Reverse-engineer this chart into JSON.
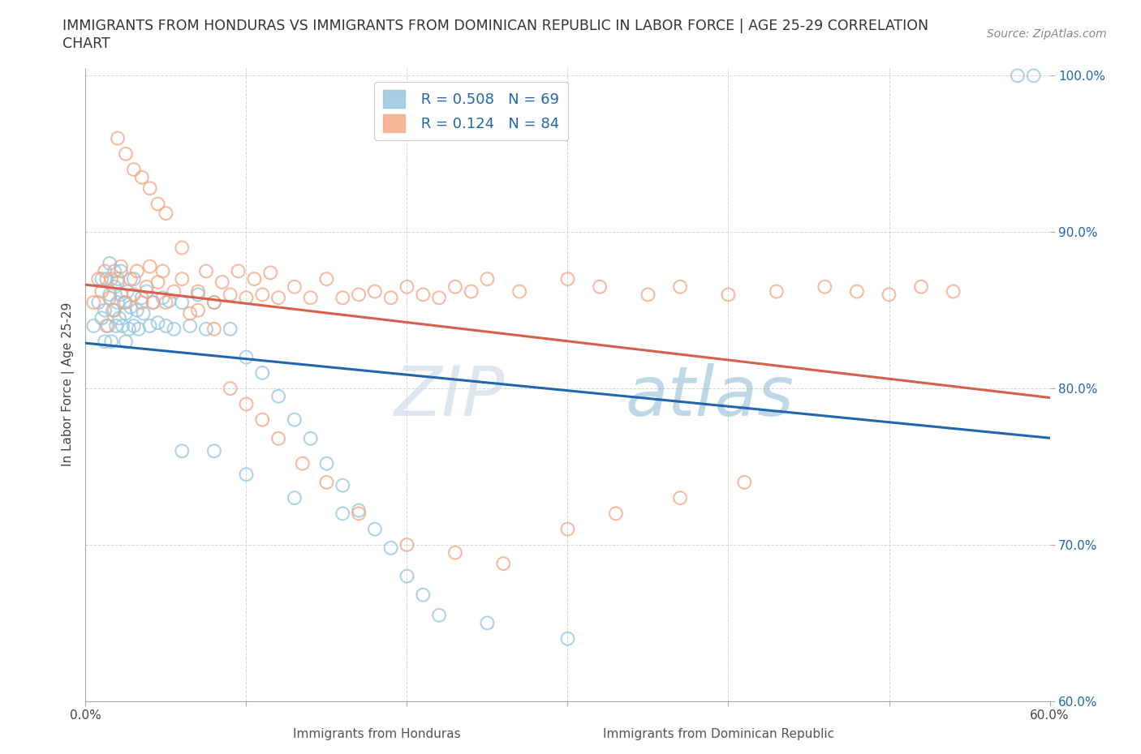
{
  "title_line1": "IMMIGRANTS FROM HONDURAS VS IMMIGRANTS FROM DOMINICAN REPUBLIC IN LABOR FORCE | AGE 25-29 CORRELATION",
  "title_line2": "CHART",
  "source_text": "Source: ZipAtlas.com",
  "xlabel_blue": "Immigrants from Honduras",
  "xlabel_pink": "Immigrants from Dominican Republic",
  "ylabel": "In Labor Force | Age 25-29",
  "xlim": [
    0.0,
    0.6
  ],
  "ylim": [
    0.6,
    1.005
  ],
  "x_ticks": [
    0.0,
    0.1,
    0.2,
    0.3,
    0.4,
    0.5,
    0.6
  ],
  "x_tick_labels": [
    "0.0%",
    "",
    "",
    "",
    "",
    "",
    "60.0%"
  ],
  "y_ticks": [
    0.6,
    0.7,
    0.8,
    0.9,
    1.0
  ],
  "y_tick_labels": [
    "60.0%",
    "70.0%",
    "80.0%",
    "90.0%",
    "100.0%"
  ],
  "R_blue": 0.508,
  "N_blue": 69,
  "R_pink": 0.124,
  "N_pink": 84,
  "blue_color": "#92c5de",
  "pink_color": "#f4a582",
  "trend_blue_color": "#2166ac",
  "trend_pink_color": "#d6604d",
  "legend_text_color": "#2166ac",
  "watermark_zip": "ZIP",
  "watermark_atlas": "atlas",
  "blue_scatter_x": [
    0.005,
    0.008,
    0.01,
    0.01,
    0.012,
    0.012,
    0.013,
    0.014,
    0.015,
    0.015,
    0.016,
    0.017,
    0.018,
    0.018,
    0.019,
    0.02,
    0.02,
    0.021,
    0.022,
    0.022,
    0.023,
    0.024,
    0.025,
    0.025,
    0.026,
    0.027,
    0.028,
    0.03,
    0.03,
    0.032,
    0.033,
    0.035,
    0.036,
    0.038,
    0.04,
    0.042,
    0.045,
    0.048,
    0.05,
    0.052,
    0.055,
    0.06,
    0.065,
    0.07,
    0.075,
    0.08,
    0.09,
    0.1,
    0.11,
    0.12,
    0.13,
    0.14,
    0.15,
    0.16,
    0.17,
    0.18,
    0.19,
    0.2,
    0.21,
    0.22,
    0.06,
    0.08,
    0.1,
    0.13,
    0.16,
    0.25,
    0.3,
    0.58,
    0.59
  ],
  "blue_scatter_y": [
    0.84,
    0.855,
    0.845,
    0.87,
    0.83,
    0.85,
    0.87,
    0.84,
    0.86,
    0.88,
    0.83,
    0.85,
    0.865,
    0.875,
    0.84,
    0.855,
    0.87,
    0.845,
    0.86,
    0.875,
    0.84,
    0.855,
    0.83,
    0.848,
    0.862,
    0.838,
    0.852,
    0.84,
    0.87,
    0.85,
    0.838,
    0.858,
    0.848,
    0.862,
    0.84,
    0.855,
    0.842,
    0.858,
    0.84,
    0.856,
    0.838,
    0.855,
    0.84,
    0.86,
    0.838,
    0.855,
    0.838,
    0.82,
    0.81,
    0.795,
    0.78,
    0.768,
    0.752,
    0.738,
    0.722,
    0.71,
    0.698,
    0.68,
    0.668,
    0.655,
    0.76,
    0.76,
    0.745,
    0.73,
    0.72,
    0.65,
    0.64,
    1.0,
    1.0
  ],
  "pink_scatter_x": [
    0.005,
    0.008,
    0.01,
    0.012,
    0.013,
    0.015,
    0.016,
    0.018,
    0.02,
    0.022,
    0.025,
    0.028,
    0.03,
    0.032,
    0.035,
    0.038,
    0.04,
    0.042,
    0.045,
    0.048,
    0.05,
    0.055,
    0.06,
    0.065,
    0.07,
    0.075,
    0.08,
    0.085,
    0.09,
    0.095,
    0.1,
    0.105,
    0.11,
    0.115,
    0.12,
    0.13,
    0.14,
    0.15,
    0.16,
    0.17,
    0.18,
    0.19,
    0.2,
    0.21,
    0.22,
    0.23,
    0.24,
    0.25,
    0.27,
    0.3,
    0.32,
    0.35,
    0.37,
    0.4,
    0.43,
    0.46,
    0.48,
    0.5,
    0.52,
    0.54,
    0.02,
    0.025,
    0.03,
    0.035,
    0.04,
    0.045,
    0.05,
    0.06,
    0.07,
    0.08,
    0.09,
    0.1,
    0.11,
    0.12,
    0.135,
    0.15,
    0.17,
    0.2,
    0.23,
    0.26,
    0.3,
    0.33,
    0.37,
    0.41
  ],
  "pink_scatter_y": [
    0.855,
    0.87,
    0.862,
    0.875,
    0.84,
    0.858,
    0.87,
    0.85,
    0.868,
    0.878,
    0.855,
    0.87,
    0.86,
    0.875,
    0.855,
    0.865,
    0.878,
    0.855,
    0.868,
    0.875,
    0.855,
    0.862,
    0.87,
    0.848,
    0.862,
    0.875,
    0.855,
    0.868,
    0.86,
    0.875,
    0.858,
    0.87,
    0.86,
    0.874,
    0.858,
    0.865,
    0.858,
    0.87,
    0.858,
    0.86,
    0.862,
    0.858,
    0.865,
    0.86,
    0.858,
    0.865,
    0.862,
    0.87,
    0.862,
    0.87,
    0.865,
    0.86,
    0.865,
    0.86,
    0.862,
    0.865,
    0.862,
    0.86,
    0.865,
    0.862,
    0.96,
    0.95,
    0.94,
    0.935,
    0.928,
    0.918,
    0.912,
    0.89,
    0.85,
    0.838,
    0.8,
    0.79,
    0.78,
    0.768,
    0.752,
    0.74,
    0.72,
    0.7,
    0.695,
    0.688,
    0.71,
    0.72,
    0.73,
    0.74
  ]
}
